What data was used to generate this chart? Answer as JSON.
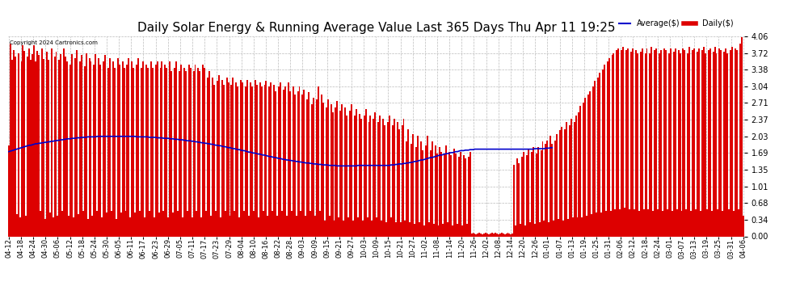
{
  "title": "Daily Solar Energy & Running Average Value Last 365 Days Thu Apr 11 19:25",
  "copyright": "Copyright 2024 Cartronics.com",
  "legend_avg": "Average($)",
  "legend_daily": "Daily($)",
  "ylim": [
    0.0,
    4.06
  ],
  "yticks": [
    0.0,
    0.34,
    0.68,
    1.01,
    1.35,
    1.69,
    2.03,
    2.37,
    2.71,
    3.04,
    3.38,
    3.72,
    4.06
  ],
  "bar_color": "#dd0000",
  "avg_color": "#0000cc",
  "background_color": "#ffffff",
  "grid_color": "#bbbbbb",
  "title_fontsize": 11,
  "tick_fontsize": 6,
  "bar_width": 1.0,
  "x_labels": [
    "04-12",
    "04-18",
    "04-24",
    "04-30",
    "05-06",
    "05-12",
    "05-18",
    "05-24",
    "05-30",
    "06-05",
    "06-11",
    "06-17",
    "06-23",
    "06-29",
    "07-05",
    "07-11",
    "07-17",
    "07-23",
    "07-29",
    "08-04",
    "08-10",
    "08-16",
    "08-22",
    "08-28",
    "09-03",
    "09-09",
    "09-15",
    "09-21",
    "09-27",
    "10-03",
    "10-09",
    "10-15",
    "10-21",
    "10-27",
    "11-02",
    "11-08",
    "11-14",
    "11-20",
    "11-26",
    "12-02",
    "12-08",
    "12-14",
    "12-20",
    "12-26",
    "01-01",
    "01-07",
    "01-13",
    "01-19",
    "01-25",
    "01-31",
    "02-06",
    "02-12",
    "02-18",
    "02-24",
    "03-01",
    "03-07",
    "03-13",
    "03-19",
    "03-25",
    "03-31",
    "04-06"
  ],
  "daily_values": [
    1.85,
    3.92,
    3.58,
    3.78,
    3.65,
    0.45,
    3.72,
    0.38,
    3.55,
    3.88,
    3.76,
    0.42,
    3.65,
    3.82,
    3.58,
    3.7,
    3.88,
    3.55,
    3.76,
    3.68,
    0.52,
    3.82,
    3.6,
    0.35,
    3.75,
    3.58,
    0.48,
    3.82,
    0.38,
    3.65,
    3.75,
    0.42,
    3.58,
    3.7,
    0.52,
    3.82,
    3.65,
    3.55,
    0.42,
    3.48,
    3.7,
    0.38,
    3.62,
    3.78,
    0.45,
    3.55,
    3.68,
    0.52,
    3.45,
    3.72,
    0.35,
    3.62,
    3.55,
    0.42,
    3.48,
    3.7,
    0.52,
    3.62,
    3.48,
    0.38,
    3.55,
    3.68,
    0.48,
    3.42,
    3.62,
    0.52,
    3.55,
    3.42,
    0.35,
    3.62,
    3.48,
    0.48,
    3.55,
    3.42,
    0.52,
    3.48,
    3.62,
    0.38,
    3.55,
    3.42,
    0.48,
    3.48,
    3.62,
    0.52,
    3.42,
    3.55,
    0.38,
    3.48,
    3.42,
    0.52,
    3.55,
    3.42,
    0.38,
    3.48,
    3.55,
    0.48,
    3.42,
    3.55,
    0.52,
    3.48,
    3.42,
    0.38,
    3.55,
    3.35,
    0.48,
    3.42,
    3.55,
    0.52,
    3.35,
    3.48,
    0.38,
    3.42,
    3.35,
    0.52,
    3.48,
    3.42,
    0.38,
    3.35,
    3.48,
    0.52,
    3.42,
    3.35,
    0.38,
    3.48,
    3.42,
    0.52,
    3.22,
    3.35,
    0.42,
    3.22,
    3.08,
    0.52,
    3.15,
    3.28,
    0.38,
    3.18,
    3.08,
    0.52,
    3.22,
    3.12,
    0.42,
    3.08,
    3.22,
    0.52,
    3.12,
    3.05,
    0.38,
    3.18,
    3.12,
    0.52,
    3.05,
    3.18,
    0.42,
    3.12,
    3.05,
    0.52,
    3.18,
    3.08,
    0.38,
    3.12,
    3.05,
    0.52,
    3.08,
    3.15,
    0.42,
    3.05,
    3.12,
    0.52,
    3.08,
    2.95,
    0.42,
    3.05,
    3.12,
    0.52,
    2.98,
    3.05,
    0.42,
    3.12,
    2.95,
    0.52,
    3.05,
    2.88,
    0.42,
    2.95,
    3.05,
    0.52,
    2.88,
    2.98,
    0.42,
    2.78,
    2.92,
    0.52,
    2.68,
    2.82,
    0.42,
    2.78,
    3.05,
    0.52,
    2.88,
    2.72,
    0.32,
    2.62,
    2.78,
    0.42,
    2.68,
    2.52,
    0.32,
    2.62,
    2.75,
    0.38,
    2.55,
    2.68,
    0.32,
    2.62,
    2.45,
    0.38,
    2.55,
    2.68,
    0.32,
    2.45,
    2.58,
    0.38,
    2.48,
    2.38,
    0.32,
    2.45,
    2.58,
    0.38,
    2.32,
    2.45,
    0.32,
    2.38,
    2.52,
    0.38,
    2.32,
    2.45,
    0.32,
    2.38,
    2.25,
    0.28,
    2.32,
    2.45,
    0.38,
    2.25,
    2.38,
    0.28,
    2.32,
    2.18,
    0.28,
    2.25,
    2.38,
    0.32,
    1.92,
    2.18,
    0.28,
    1.88,
    2.08,
    0.25,
    1.82,
    2.05,
    0.28,
    1.92,
    1.75,
    0.22,
    1.85,
    2.05,
    0.28,
    1.75,
    1.92,
    0.25,
    1.85,
    1.68,
    0.22,
    1.82,
    1.72,
    0.25,
    1.68,
    1.85,
    0.28,
    1.72,
    1.65,
    0.22,
    1.78,
    1.68,
    0.25,
    1.62,
    1.72,
    0.22,
    1.65,
    1.58,
    0.25,
    1.62,
    1.72,
    0.05,
    0.08,
    0.05,
    0.04,
    0.06,
    0.08,
    0.05,
    0.04,
    0.06,
    0.08,
    0.05,
    0.04,
    0.06,
    0.08,
    0.05,
    0.08,
    0.05,
    0.04,
    0.06,
    0.08,
    0.05,
    0.04,
    0.06,
    0.08,
    0.05,
    0.04,
    0.06,
    1.45,
    0.22,
    1.58,
    1.48,
    0.25,
    1.62,
    1.72,
    0.22,
    1.65,
    1.78,
    0.28,
    1.72,
    1.82,
    0.25,
    1.68,
    1.82,
    0.28,
    1.75,
    1.92,
    0.32,
    1.88,
    1.95,
    0.28,
    2.05,
    1.88,
    0.32,
    1.95,
    2.08,
    0.35,
    2.15,
    2.22,
    0.32,
    2.18,
    2.32,
    0.35,
    2.25,
    2.38,
    0.38,
    2.32,
    2.45,
    0.38,
    2.52,
    2.65,
    0.38,
    2.72,
    2.82,
    0.42,
    2.88,
    2.95,
    0.45,
    3.05,
    3.15,
    0.48,
    3.22,
    3.32,
    0.48,
    3.38,
    3.48,
    0.52,
    3.55,
    3.62,
    0.52,
    3.68,
    3.72,
    0.55,
    3.78,
    3.82,
    0.55,
    3.78,
    3.85,
    0.58,
    3.78,
    3.82,
    0.55,
    3.75,
    3.82,
    0.55,
    3.78,
    3.72,
    0.52,
    3.75,
    3.82,
    0.55,
    3.72,
    3.82,
    0.55,
    3.72,
    3.85,
    0.52,
    3.78,
    3.82,
    0.55,
    3.72,
    3.78,
    0.52,
    3.82,
    3.78,
    0.55,
    3.72,
    3.82,
    0.52,
    3.75,
    3.82,
    0.55,
    3.78,
    3.72,
    0.52,
    3.82,
    3.78,
    0.55,
    3.72,
    3.85,
    0.52,
    3.78,
    3.82,
    0.55,
    3.75,
    3.82,
    0.52,
    3.78,
    3.85,
    3.72,
    0.55,
    3.78,
    3.82,
    0.52,
    3.75,
    3.85,
    3.72,
    0.55,
    3.82,
    3.78,
    0.52,
    3.75,
    3.82,
    3.72,
    0.55,
    3.78,
    3.85,
    0.52,
    3.82,
    3.78,
    0.55,
    3.92,
    4.05,
    0.42
  ],
  "avg_values": [
    1.72,
    1.73,
    1.74,
    1.75,
    1.76,
    1.77,
    1.78,
    1.79,
    1.8,
    1.81,
    1.82,
    1.83,
    1.84,
    1.85,
    1.85,
    1.86,
    1.87,
    1.88,
    1.88,
    1.89,
    1.89,
    1.9,
    1.9,
    1.91,
    1.91,
    1.92,
    1.92,
    1.93,
    1.93,
    1.94,
    1.94,
    1.95,
    1.95,
    1.96,
    1.96,
    1.97,
    1.97,
    1.98,
    1.98,
    1.98,
    1.99,
    1.99,
    1.99,
    2.0,
    2.0,
    2.0,
    2.01,
    2.01,
    2.01,
    2.01,
    2.02,
    2.02,
    2.02,
    2.02,
    2.02,
    2.02,
    2.03,
    2.03,
    2.03,
    2.03,
    2.03,
    2.03,
    2.03,
    2.03,
    2.03,
    2.03,
    2.03,
    2.03,
    2.03,
    2.03,
    2.03,
    2.03,
    2.03,
    2.03,
    2.03,
    2.03,
    2.03,
    2.03,
    2.03,
    2.03,
    2.03,
    2.02,
    2.02,
    2.02,
    2.02,
    2.02,
    2.02,
    2.02,
    2.02,
    2.01,
    2.01,
    2.01,
    2.01,
    2.01,
    2.0,
    2.0,
    2.0,
    2.0,
    1.99,
    1.99,
    1.99,
    1.99,
    1.98,
    1.98,
    1.98,
    1.97,
    1.97,
    1.97,
    1.96,
    1.96,
    1.96,
    1.95,
    1.95,
    1.94,
    1.94,
    1.94,
    1.93,
    1.93,
    1.92,
    1.92,
    1.91,
    1.91,
    1.9,
    1.9,
    1.89,
    1.89,
    1.88,
    1.88,
    1.87,
    1.87,
    1.86,
    1.85,
    1.85,
    1.84,
    1.84,
    1.83,
    1.82,
    1.82,
    1.81,
    1.8,
    1.8,
    1.79,
    1.78,
    1.78,
    1.77,
    1.76,
    1.76,
    1.75,
    1.74,
    1.74,
    1.73,
    1.72,
    1.71,
    1.71,
    1.7,
    1.69,
    1.69,
    1.68,
    1.67,
    1.67,
    1.66,
    1.65,
    1.65,
    1.64,
    1.63,
    1.62,
    1.62,
    1.61,
    1.6,
    1.6,
    1.59,
    1.58,
    1.58,
    1.57,
    1.56,
    1.56,
    1.55,
    1.55,
    1.54,
    1.54,
    1.53,
    1.53,
    1.52,
    1.52,
    1.51,
    1.51,
    1.5,
    1.5,
    1.49,
    1.49,
    1.49,
    1.48,
    1.48,
    1.47,
    1.47,
    1.47,
    1.46,
    1.46,
    1.46,
    1.45,
    1.45,
    1.45,
    1.45,
    1.44,
    1.44,
    1.44,
    1.44,
    1.44,
    1.43,
    1.43,
    1.43,
    1.43,
    1.43,
    1.43,
    1.43,
    1.43,
    1.43,
    1.43,
    1.43,
    1.43,
    1.43,
    1.44,
    1.44,
    1.44,
    1.44,
    1.44,
    1.44,
    1.44,
    1.44,
    1.44,
    1.44,
    1.44,
    1.44,
    1.44,
    1.44,
    1.44,
    1.44,
    1.44,
    1.44,
    1.44,
    1.44,
    1.44,
    1.45,
    1.45,
    1.45,
    1.46,
    1.46,
    1.47,
    1.47,
    1.47,
    1.48,
    1.48,
    1.49,
    1.49,
    1.5,
    1.5,
    1.51,
    1.52,
    1.52,
    1.53,
    1.54,
    1.55,
    1.55,
    1.56,
    1.57,
    1.58,
    1.59,
    1.6,
    1.6,
    1.61,
    1.62,
    1.63,
    1.64,
    1.65,
    1.65,
    1.66,
    1.67,
    1.68,
    1.68,
    1.69,
    1.7,
    1.7,
    1.71,
    1.72,
    1.72,
    1.73,
    1.74,
    1.74,
    1.74,
    1.75,
    1.75,
    1.75,
    1.76,
    1.76,
    1.76,
    1.77,
    1.77,
    1.77,
    1.77,
    1.77,
    1.77,
    1.77,
    1.77,
    1.77,
    1.77,
    1.77,
    1.77,
    1.77,
    1.77,
    1.77,
    1.77,
    1.77,
    1.77,
    1.77,
    1.77,
    1.77,
    1.77,
    1.77,
    1.77,
    1.77,
    1.77,
    1.77,
    1.77,
    1.77,
    1.77,
    1.77,
    1.77,
    1.77,
    1.77,
    1.77,
    1.77,
    1.77,
    1.77,
    1.78,
    1.78,
    1.78,
    1.78,
    1.78,
    1.78,
    1.78,
    1.79,
    1.79,
    1.79,
    1.8,
    1.8
  ]
}
